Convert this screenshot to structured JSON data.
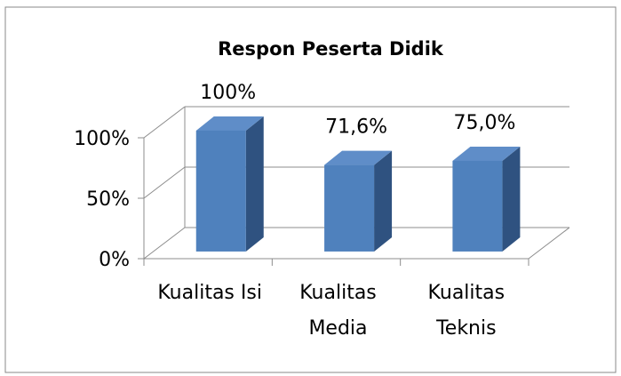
{
  "chart_data": {
    "type": "bar3d",
    "title": "Respon Peserta Didik",
    "categories": [
      "Kualitas Isi",
      "Kualitas Media",
      "Kualitas Teknis"
    ],
    "values": [
      100,
      71.6,
      75.0
    ],
    "value_labels": [
      "100%",
      "71,6%",
      "75,0%"
    ],
    "color": "#4f81bd",
    "ylim": [
      0,
      100
    ],
    "yticks": [
      {
        "value": 0,
        "label": "0%"
      },
      {
        "value": 50,
        "label": "50%"
      },
      {
        "value": 100,
        "label": "100%"
      }
    ],
    "grid": true
  }
}
